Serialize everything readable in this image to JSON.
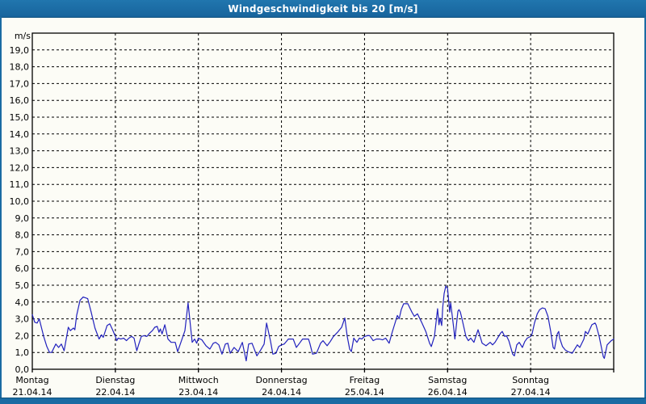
{
  "window": {
    "title": "Windgeschwindigkeit bis 20 [m/s]"
  },
  "colors": {
    "titlebar": "#1a6ba3",
    "titlebar_text": "#ffffff",
    "background": "#fcfcf6",
    "grid": "#000000",
    "line": "#2121bd"
  },
  "chart_data": {
    "type": "line",
    "title": "Windgeschwindigkeit bis 20 [m/s]",
    "ylabel": "m/s",
    "unit_label": "m/s",
    "ylim": [
      0,
      20
    ],
    "ytick_step": 1.0,
    "ytick_labels": [
      "0,0",
      "1,0",
      "2,0",
      "3,0",
      "4,0",
      "5,0",
      "6,0",
      "7,0",
      "8,0",
      "9,0",
      "10,0",
      "11,0",
      "12,0",
      "13,0",
      "14,0",
      "15,0",
      "16,0",
      "17,0",
      "18,0",
      "19,0"
    ],
    "grid": "dashed",
    "legend": "none",
    "x_unit": "hours",
    "xlim_hours": [
      0,
      168
    ],
    "days": [
      {
        "name": "Montag",
        "date": "21.04.14"
      },
      {
        "name": "Dienstag",
        "date": "22.04.14"
      },
      {
        "name": "Mittwoch",
        "date": "23.04.14"
      },
      {
        "name": "Donnerstag",
        "date": "24.04.14"
      },
      {
        "name": "Freitag",
        "date": "25.04.14"
      },
      {
        "name": "Samstag",
        "date": "26.04.14"
      },
      {
        "name": "Sonntag",
        "date": "27.04.14"
      }
    ],
    "series": [
      {
        "name": "Windgeschwindigkeit",
        "unit": "m/s",
        "points": [
          [
            0,
            3.25
          ],
          [
            0.7,
            2.8
          ],
          [
            1.4,
            2.75
          ],
          [
            2,
            3.0
          ],
          [
            3.3,
            1.95
          ],
          [
            4.2,
            1.35
          ],
          [
            5,
            1.0
          ],
          [
            5.6,
            1.0
          ],
          [
            6.8,
            1.5
          ],
          [
            7.6,
            1.3
          ],
          [
            8.4,
            1.5
          ],
          [
            9.2,
            1.1
          ],
          [
            10.4,
            2.5
          ],
          [
            11,
            2.3
          ],
          [
            11.9,
            2.45
          ],
          [
            12.3,
            2.35
          ],
          [
            12.8,
            3.2
          ],
          [
            13.8,
            4.1
          ],
          [
            14.7,
            4.3
          ],
          [
            16,
            4.2
          ],
          [
            17,
            3.4
          ],
          [
            18.1,
            2.45
          ],
          [
            19.3,
            1.8
          ],
          [
            20,
            2.05
          ],
          [
            20.5,
            1.9
          ],
          [
            21.6,
            2.6
          ],
          [
            22.4,
            2.7
          ],
          [
            23.2,
            2.35
          ],
          [
            24,
            1.95
          ],
          [
            24.4,
            1.7
          ],
          [
            24.8,
            1.85
          ],
          [
            25.6,
            1.8
          ],
          [
            26.4,
            1.85
          ],
          [
            27.2,
            1.7
          ],
          [
            27.9,
            1.85
          ],
          [
            28.7,
            1.95
          ],
          [
            29.4,
            1.85
          ],
          [
            30.2,
            1.1
          ],
          [
            30.7,
            1.45
          ],
          [
            31.5,
            1.95
          ],
          [
            32.3,
            2.0
          ],
          [
            33.1,
            1.95
          ],
          [
            33.9,
            2.15
          ],
          [
            34.7,
            2.3
          ],
          [
            35.4,
            2.5
          ],
          [
            36.1,
            2.55
          ],
          [
            36.6,
            2.2
          ],
          [
            37,
            2.4
          ],
          [
            37.5,
            2.1
          ],
          [
            38.3,
            2.65
          ],
          [
            39.2,
            1.8
          ],
          [
            40.1,
            1.6
          ],
          [
            41.3,
            1.6
          ],
          [
            42,
            1.05
          ],
          [
            43.2,
            1.75
          ],
          [
            44.1,
            2.3
          ],
          [
            45,
            3.95
          ],
          [
            46.2,
            1.6
          ],
          [
            46.9,
            1.8
          ],
          [
            47.5,
            1.55
          ],
          [
            48,
            1.85
          ],
          [
            49,
            1.75
          ],
          [
            50.2,
            1.4
          ],
          [
            51.3,
            1.2
          ],
          [
            52.3,
            1.55
          ],
          [
            53,
            1.6
          ],
          [
            53.9,
            1.45
          ],
          [
            54.8,
            0.9
          ],
          [
            55.8,
            1.5
          ],
          [
            56.5,
            1.55
          ],
          [
            57.2,
            0.95
          ],
          [
            58.3,
            1.3
          ],
          [
            59.5,
            1.05
          ],
          [
            60.7,
            1.6
          ],
          [
            61.8,
            0.5
          ],
          [
            62.5,
            1.5
          ],
          [
            63.5,
            1.55
          ],
          [
            64.9,
            0.8
          ],
          [
            66,
            1.15
          ],
          [
            67,
            1.5
          ],
          [
            67.7,
            2.75
          ],
          [
            68.8,
            1.7
          ],
          [
            69.5,
            0.9
          ],
          [
            70.4,
            0.95
          ],
          [
            71.2,
            1.35
          ],
          [
            72,
            1.45
          ],
          [
            72.8,
            1.5
          ],
          [
            74,
            1.8
          ],
          [
            75.4,
            1.8
          ],
          [
            76.3,
            1.3
          ],
          [
            77.2,
            1.55
          ],
          [
            78.1,
            1.8
          ],
          [
            79.8,
            1.8
          ],
          [
            80.2,
            1.55
          ],
          [
            81,
            0.9
          ],
          [
            82.1,
            0.95
          ],
          [
            83.3,
            1.55
          ],
          [
            84,
            1.7
          ],
          [
            85.2,
            1.4
          ],
          [
            86.1,
            1.65
          ],
          [
            87,
            1.95
          ],
          [
            88.2,
            2.2
          ],
          [
            89.4,
            2.5
          ],
          [
            90.3,
            3.05
          ],
          [
            91,
            1.95
          ],
          [
            91.7,
            1.2
          ],
          [
            92.2,
            1.05
          ],
          [
            92.9,
            1.85
          ],
          [
            93.8,
            1.6
          ],
          [
            94.5,
            1.85
          ],
          [
            95.2,
            1.8
          ],
          [
            96,
            1.95
          ],
          [
            96.8,
            2.0
          ],
          [
            97.5,
            2.0
          ],
          [
            98.5,
            1.7
          ],
          [
            99.4,
            1.8
          ],
          [
            100.3,
            1.8
          ],
          [
            101.2,
            1.75
          ],
          [
            102.1,
            1.85
          ],
          [
            103.1,
            1.55
          ],
          [
            104,
            2.2
          ],
          [
            104.5,
            2.55
          ],
          [
            105.5,
            3.2
          ],
          [
            106,
            3.0
          ],
          [
            106.6,
            3.55
          ],
          [
            107.3,
            3.9
          ],
          [
            108.5,
            3.9
          ],
          [
            109.7,
            3.4
          ],
          [
            110.4,
            3.15
          ],
          [
            111.3,
            3.3
          ],
          [
            112.5,
            2.8
          ],
          [
            113.7,
            2.25
          ],
          [
            114.8,
            1.55
          ],
          [
            115.3,
            1.35
          ],
          [
            116.2,
            1.95
          ],
          [
            117.1,
            3.6
          ],
          [
            117.5,
            2.65
          ],
          [
            117.8,
            3.05
          ],
          [
            118.3,
            2.6
          ],
          [
            118.6,
            3.7
          ],
          [
            119,
            4.5
          ],
          [
            119.5,
            4.95
          ],
          [
            120,
            4.8
          ],
          [
            120.2,
            4.35
          ],
          [
            120.6,
            3.4
          ],
          [
            120.9,
            3.95
          ],
          [
            121.8,
            2.4
          ],
          [
            122.1,
            1.8
          ],
          [
            123,
            3.45
          ],
          [
            123.3,
            3.55
          ],
          [
            123.7,
            3.4
          ],
          [
            124.1,
            3.05
          ],
          [
            125.3,
            1.95
          ],
          [
            126,
            1.7
          ],
          [
            126.7,
            1.85
          ],
          [
            127.6,
            1.6
          ],
          [
            128.8,
            2.35
          ],
          [
            130,
            1.55
          ],
          [
            131.1,
            1.4
          ],
          [
            132.3,
            1.6
          ],
          [
            133,
            1.45
          ],
          [
            133.7,
            1.6
          ],
          [
            135.3,
            2.15
          ],
          [
            135.8,
            2.25
          ],
          [
            136.5,
            1.95
          ],
          [
            137,
            2.0
          ],
          [
            137.7,
            1.7
          ],
          [
            138.8,
            0.9
          ],
          [
            139.3,
            0.8
          ],
          [
            140,
            1.45
          ],
          [
            140.7,
            1.6
          ],
          [
            141.6,
            1.3
          ],
          [
            142.3,
            1.65
          ],
          [
            143,
            1.85
          ],
          [
            144,
            1.95
          ],
          [
            144.4,
            2.1
          ],
          [
            145.1,
            2.75
          ],
          [
            145.9,
            3.3
          ],
          [
            146.6,
            3.55
          ],
          [
            147.4,
            3.65
          ],
          [
            148.2,
            3.6
          ],
          [
            149,
            3.15
          ],
          [
            149.8,
            2.25
          ],
          [
            150.5,
            1.3
          ],
          [
            150.9,
            1.2
          ],
          [
            151.7,
            2.1
          ],
          [
            152.1,
            2.25
          ],
          [
            152.4,
            1.85
          ],
          [
            153.2,
            1.35
          ],
          [
            154,
            1.15
          ],
          [
            154.8,
            1.05
          ],
          [
            156,
            0.95
          ],
          [
            157.5,
            1.45
          ],
          [
            158.2,
            1.3
          ],
          [
            159.4,
            1.8
          ],
          [
            159.8,
            2.25
          ],
          [
            160.5,
            2.1
          ],
          [
            161.7,
            2.65
          ],
          [
            162.6,
            2.75
          ],
          [
            162.9,
            2.65
          ],
          [
            163.8,
            1.95
          ],
          [
            165,
            0.75
          ],
          [
            165.3,
            0.65
          ],
          [
            166.1,
            1.45
          ],
          [
            167.3,
            1.7
          ],
          [
            168,
            1.8
          ]
        ]
      }
    ]
  }
}
